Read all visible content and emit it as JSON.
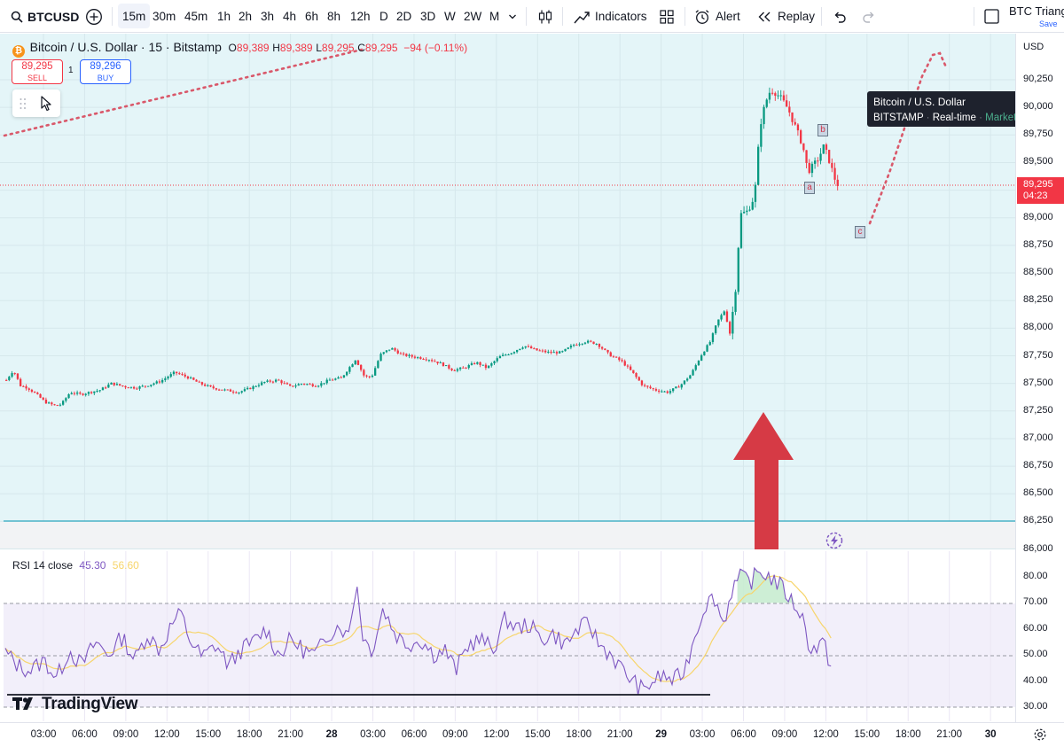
{
  "toolbar": {
    "symbol": "BTCUSD",
    "timeframes": [
      "15m",
      "30m",
      "45m",
      "1h",
      "2h",
      "3h",
      "4h",
      "6h",
      "8h",
      "12h",
      "D",
      "2D",
      "3D",
      "W",
      "2W",
      "M"
    ],
    "active_timeframe": "15m",
    "indicators_label": "Indicators",
    "alert_label": "Alert",
    "replay_label": "Replay",
    "layout_name": "BTC Triang",
    "layout_save": "Save"
  },
  "legend": {
    "title": "Bitcoin / U.S. Dollar · 15 · Bitstamp",
    "o_label": "O",
    "o_value": "89,389",
    "h_label": "H",
    "h_value": "89,389",
    "l_label": "L",
    "l_value": "89,295",
    "c_label": "C",
    "c_value": "89,295",
    "change": "−94 (−0.11%)"
  },
  "trade": {
    "sell_price": "89,295",
    "sell_label": "SELL",
    "buy_price": "89,296",
    "buy_label": "BUY",
    "spread": "1"
  },
  "tooltip": {
    "name": "Bitcoin / U.S. Dollar",
    "exchange": "BITSTAMP",
    "feed": "Real-time",
    "status": "Market open"
  },
  "price_scale": {
    "currency": "USD",
    "ticks": [
      "90,250",
      "90,000",
      "89,750",
      "89,500",
      "89,250",
      "89,000",
      "88,750",
      "88,500",
      "88,250",
      "88,000",
      "87,750",
      "87,500",
      "87,250",
      "87,000",
      "86,750",
      "86,500",
      "86,250",
      "86,000"
    ],
    "last_price": "89,295",
    "countdown": "04:23"
  },
  "rsi": {
    "label": "RSI 14 close",
    "value": "45.30",
    "ma_value": "56.60",
    "ticks": [
      "80.00",
      "70.00",
      "60.00",
      "50.00",
      "40.00",
      "30.00"
    ]
  },
  "time_axis": {
    "ticks": [
      "03:00",
      "06:00",
      "09:00",
      "12:00",
      "15:00",
      "18:00",
      "21:00",
      "28",
      "03:00",
      "06:00",
      "09:00",
      "12:00",
      "15:00",
      "18:00",
      "21:00",
      "29",
      "03:00",
      "06:00",
      "09:00",
      "12:00",
      "15:00",
      "18:00",
      "21:00",
      "30"
    ]
  },
  "wave_labels": [
    "a",
    "b",
    "c"
  ],
  "watermark": "TradingView",
  "colors": {
    "up": "#089981",
    "down": "#f23645",
    "rsi_line": "#7e57c2",
    "rsi_ma": "#f7d56b",
    "chart_bg": "#e4f5f8",
    "support_line": "#4fb3c8",
    "arrow": "#d32f2f",
    "projection": "#e57373"
  }
}
